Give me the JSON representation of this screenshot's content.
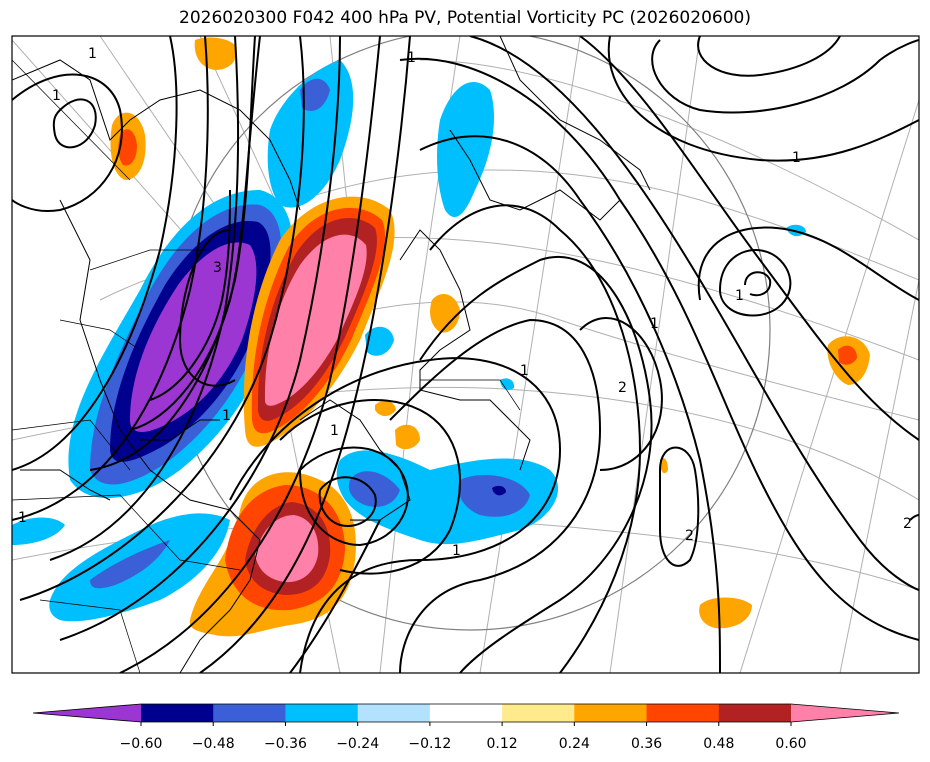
{
  "title": "2026020300 F042 400 hPa PV, Potential Vorticity PC (2026020600)",
  "colorbar": {
    "colors": [
      "#9b36d2",
      "#00008f",
      "#3b5fd6",
      "#00bfff",
      "#b3e2ff",
      "#ffffff",
      "#ffeb8c",
      "#ffa500",
      "#ff4500",
      "#b22222",
      "#ff80a8"
    ],
    "ticks": [
      "−0.60",
      "−0.48",
      "−0.36",
      "−0.24",
      "−0.12",
      "0.12",
      "0.24",
      "0.36",
      "0.48",
      "0.60"
    ],
    "extend": "both"
  },
  "contour_labels": [
    {
      "text": "1"
    },
    {
      "text": "1"
    },
    {
      "text": "1"
    },
    {
      "text": "1"
    },
    {
      "text": "1"
    },
    {
      "text": "1"
    },
    {
      "text": "1"
    },
    {
      "text": "1"
    },
    {
      "text": "1"
    },
    {
      "text": "1"
    },
    {
      "text": "2"
    },
    {
      "text": "2"
    },
    {
      "text": "3"
    },
    {
      "text": "2"
    },
    {
      "text": "1"
    }
  ]
}
